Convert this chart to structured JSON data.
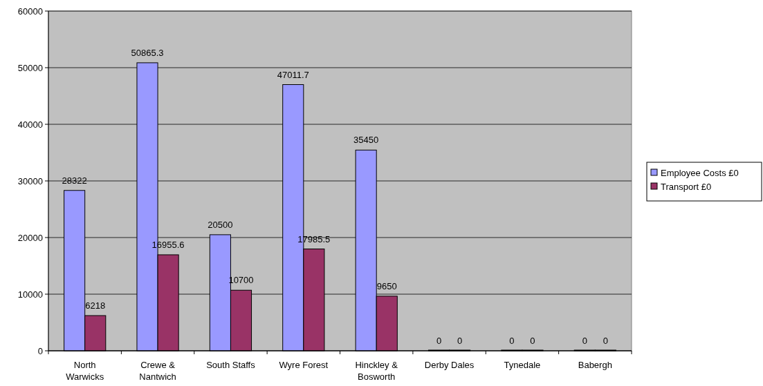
{
  "chart_data": {
    "type": "bar",
    "categories": [
      "North Warwicks",
      "Crewe & Nantwich",
      "South Staffs",
      "Wyre Forest",
      "Hinckley & Bosworth",
      "Derby Dales",
      "Tynedale",
      "Babergh"
    ],
    "series": [
      {
        "name": "Employee Costs £0",
        "color": "#9999ff",
        "values": [
          28322,
          50865.3,
          20500,
          47011.7,
          35450,
          0,
          0,
          0
        ]
      },
      {
        "name": "Transport £0",
        "color": "#993366",
        "values": [
          6218,
          16955.6,
          10700,
          17985.5,
          9650,
          0,
          0,
          0
        ]
      }
    ],
    "ylim": [
      0,
      60000
    ],
    "yticks": [
      0,
      10000,
      20000,
      30000,
      40000,
      50000,
      60000
    ],
    "grid": "y",
    "legend": "right",
    "data_labels": true
  }
}
